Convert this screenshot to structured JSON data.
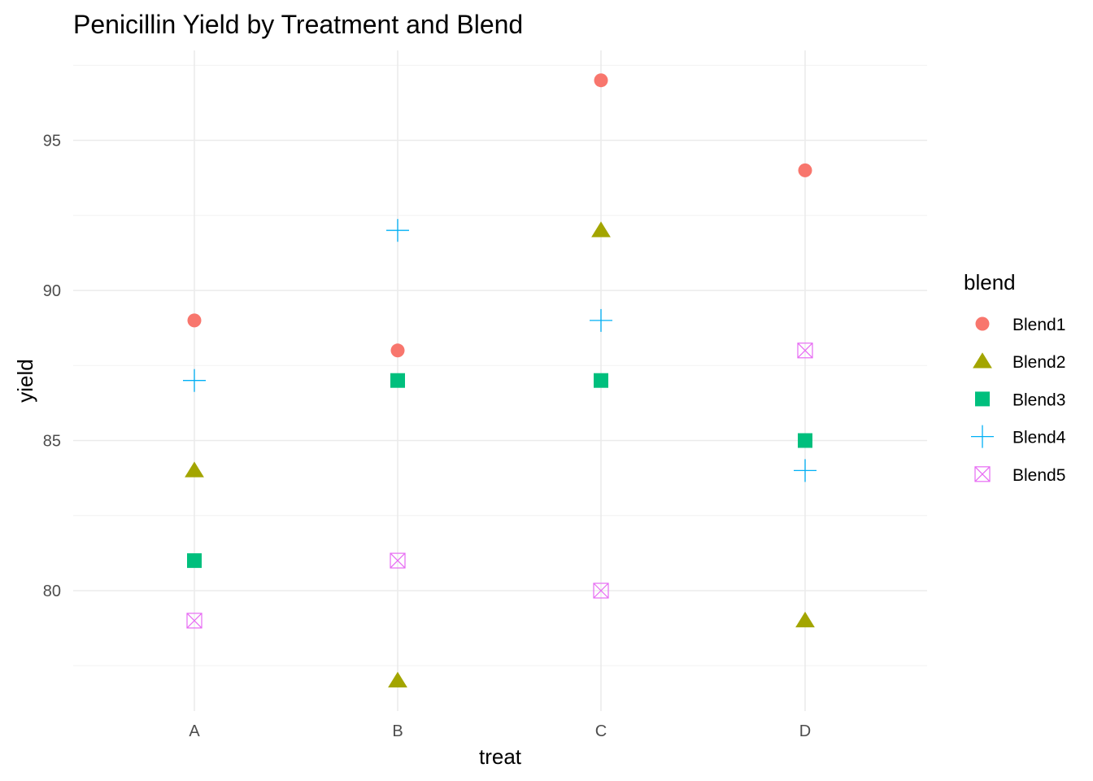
{
  "chart_data": {
    "type": "scatter",
    "title": "Penicillin Yield by Treatment and Blend",
    "xlabel": "treat",
    "ylabel": "yield",
    "categories": [
      "A",
      "B",
      "C",
      "D"
    ],
    "y_ticks": [
      80,
      85,
      90,
      95
    ],
    "ylim": [
      76.0,
      98.0
    ],
    "grid": true,
    "legend": {
      "title": "blend",
      "placement": "right"
    },
    "series": [
      {
        "name": "Blend1",
        "shape": "circle",
        "color": "#F8766D",
        "values": [
          89,
          88,
          97,
          94
        ]
      },
      {
        "name": "Blend2",
        "shape": "triangle",
        "color": "#A3A500",
        "values": [
          84,
          77,
          92,
          79
        ]
      },
      {
        "name": "Blend3",
        "shape": "square",
        "color": "#00BF7D",
        "values": [
          81,
          87,
          87,
          85
        ]
      },
      {
        "name": "Blend4",
        "shape": "plus",
        "color": "#00B0F6",
        "values": [
          87,
          92,
          89,
          84
        ]
      },
      {
        "name": "Blend5",
        "shape": "square-cross",
        "color": "#E76BF3",
        "values": [
          79,
          81,
          80,
          88
        ]
      }
    ]
  }
}
